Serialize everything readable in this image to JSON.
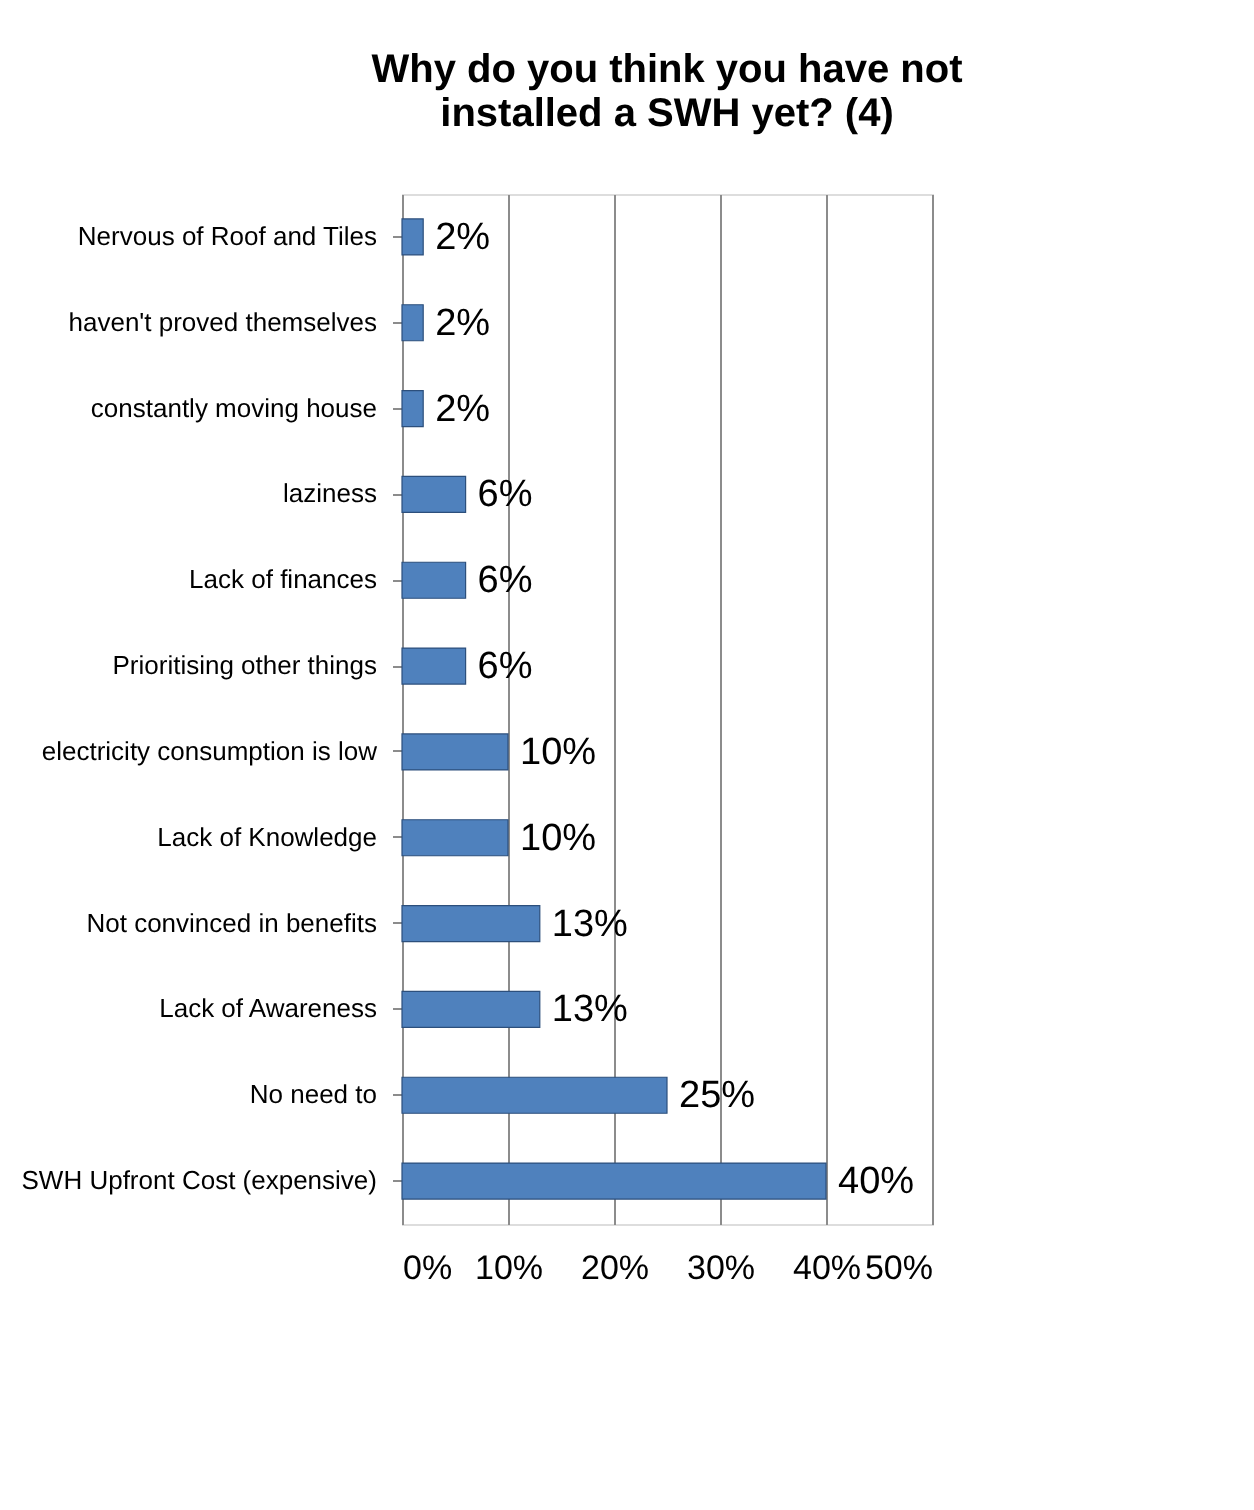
{
  "chart_data": {
    "type": "bar",
    "orientation": "horizontal",
    "title": [
      "Why do you think you have not",
      "installed a SWH yet? (4)"
    ],
    "categories": [
      "Nervous of Roof and Tiles",
      "haven't proved themselves",
      "constantly moving house",
      "laziness",
      "Lack of finances",
      "Prioritising other things",
      "electricity consumption is low",
      "Lack of Knowledge",
      "Not convinced in benefits",
      "Lack of Awareness",
      "No need to",
      "SWH Upfront Cost (expensive)"
    ],
    "values": [
      2,
      2,
      2,
      6,
      6,
      6,
      10,
      10,
      13,
      13,
      25,
      40
    ],
    "value_labels": [
      "2%",
      "2%",
      "2%",
      "6%",
      "6%",
      "6%",
      "10%",
      "10%",
      "13%",
      "13%",
      "25%",
      "40%"
    ],
    "color": "#4f81bd",
    "xlim": [
      0,
      50
    ],
    "xticks": [
      {
        "value": 0,
        "label": "0%"
      },
      {
        "value": 10,
        "label": "10%"
      },
      {
        "value": 20,
        "label": "20%"
      },
      {
        "value": 30,
        "label": "30%"
      },
      {
        "value": 40,
        "label": "40%"
      },
      {
        "value": 50,
        "label": "50%"
      }
    ],
    "grid": "x"
  }
}
